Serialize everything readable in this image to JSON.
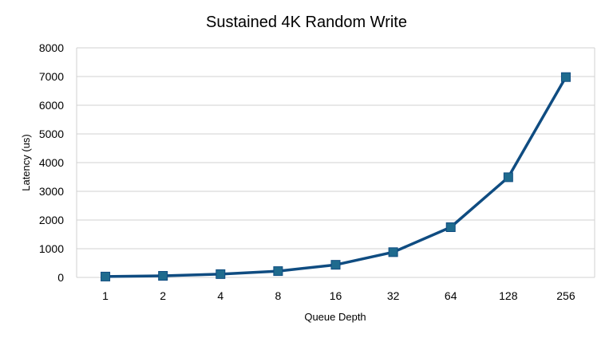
{
  "chart_data": {
    "type": "line",
    "title": "Sustained 4K Random Write",
    "xlabel": "Queue Depth",
    "ylabel": "Latency (us)",
    "categories": [
      "1",
      "2",
      "4",
      "8",
      "16",
      "32",
      "64",
      "128",
      "256"
    ],
    "series": [
      {
        "values": [
          30,
          55,
          115,
          220,
          440,
          880,
          1750,
          3490,
          6980
        ],
        "color": "#0f4c81",
        "marker": "square",
        "marker_color": "#1f6b8e"
      }
    ],
    "ylim": [
      0,
      8000
    ],
    "yticks": [
      0,
      1000,
      2000,
      3000,
      4000,
      5000,
      6000,
      7000,
      8000
    ],
    "grid": true,
    "legend": "none"
  }
}
